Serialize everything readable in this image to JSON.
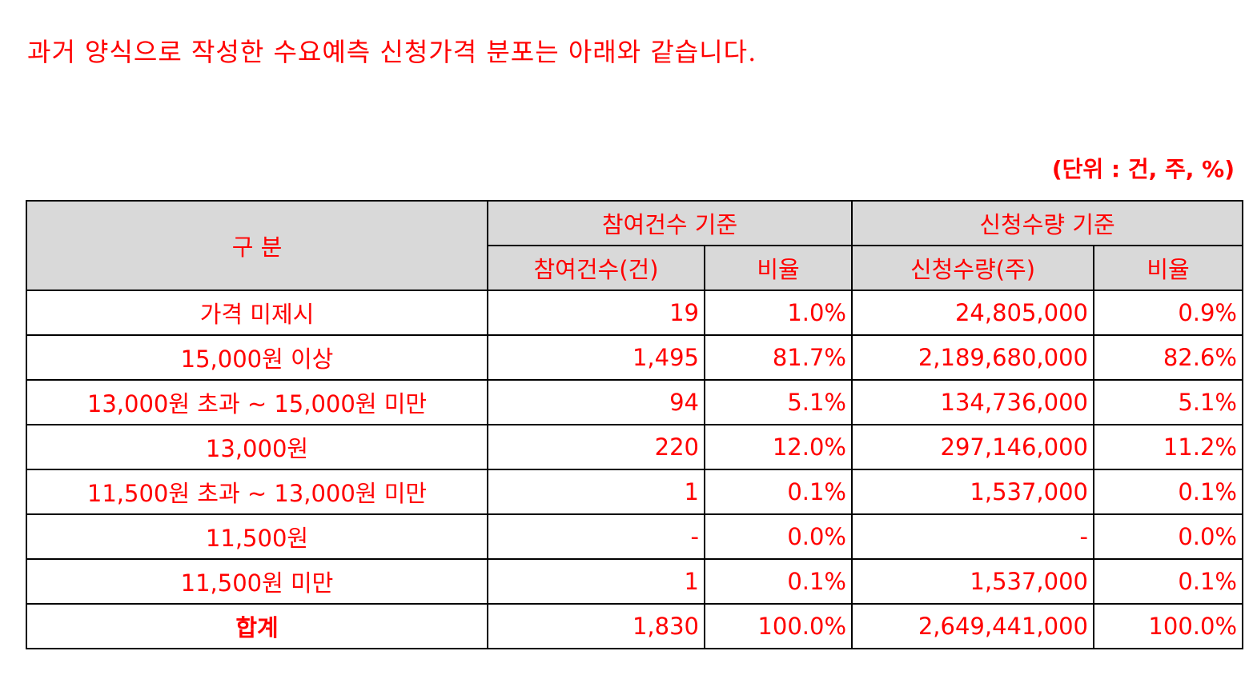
{
  "intro_text": "과거 양식으로 작성한 수요예측 신청가격 분포는 아래와 같습니다.",
  "unit_note": "(단위 : 건, 주, %)",
  "table": {
    "header": {
      "category": "구 분",
      "group_count": "참여건수 기준",
      "group_quantity": "신청수량 기준",
      "count": "참여건수(건)",
      "count_ratio": "비율",
      "quantity": "신청수량(주)",
      "quantity_ratio": "비율"
    },
    "rows": [
      {
        "label": "가격 미제시",
        "count": "19",
        "count_ratio": "1.0%",
        "quantity": "24,805,000",
        "quantity_ratio": "0.9%"
      },
      {
        "label": "15,000원 이상",
        "count": "1,495",
        "count_ratio": "81.7%",
        "quantity": "2,189,680,000",
        "quantity_ratio": "82.6%"
      },
      {
        "label": "13,000원 초과 ~ 15,000원 미만",
        "count": "94",
        "count_ratio": "5.1%",
        "quantity": "134,736,000",
        "quantity_ratio": "5.1%"
      },
      {
        "label": "13,000원",
        "count": "220",
        "count_ratio": "12.0%",
        "quantity": "297,146,000",
        "quantity_ratio": "11.2%"
      },
      {
        "label": "11,500원 초과 ~ 13,000원 미만",
        "count": "1",
        "count_ratio": "0.1%",
        "quantity": "1,537,000",
        "quantity_ratio": "0.1%"
      },
      {
        "label": "11,500원",
        "count": "-",
        "count_ratio": "0.0%",
        "quantity": "-",
        "quantity_ratio": "0.0%"
      },
      {
        "label": "11,500원 미만",
        "count": "1",
        "count_ratio": "0.1%",
        "quantity": "1,537,000",
        "quantity_ratio": "0.1%"
      }
    ],
    "total": {
      "label": "합계",
      "count": "1,830",
      "count_ratio": "100.0%",
      "quantity": "2,649,441,000",
      "quantity_ratio": "100.0%"
    }
  },
  "colors": {
    "text": "#ff0000",
    "header_bg": "#d9d9d9",
    "border": "#000000"
  }
}
